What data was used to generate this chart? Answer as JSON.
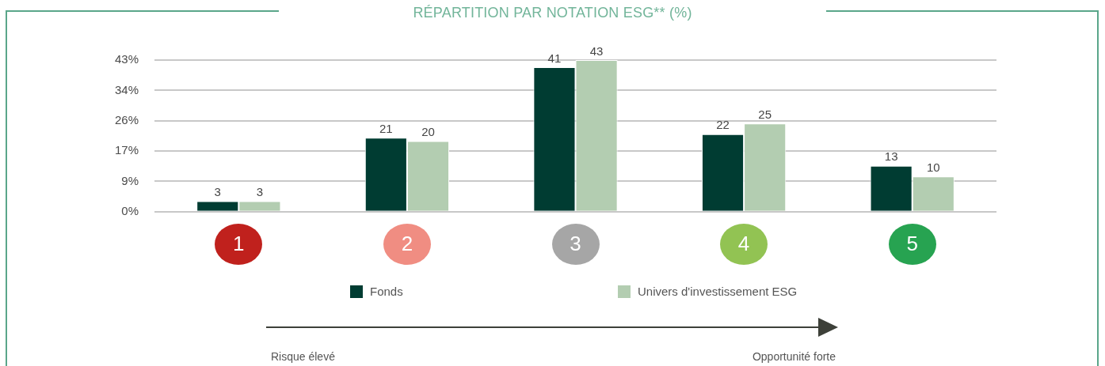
{
  "chart_data": {
    "type": "bar",
    "title": "RÉPARTITION PAR NOTATION ESG** (%)",
    "categories": [
      "1",
      "2",
      "3",
      "4",
      "5"
    ],
    "series": [
      {
        "name": "Fonds",
        "color": "#003c32",
        "values": [
          3,
          21,
          41,
          22,
          13
        ]
      },
      {
        "name": "Univers d'investissement ESG",
        "color": "#b3cdb1",
        "values": [
          3,
          20,
          43,
          25,
          10
        ]
      }
    ],
    "ylim": [
      0,
      43
    ],
    "yticks": [
      {
        "value": 0,
        "label": "0%"
      },
      {
        "value": 8.6,
        "label": "9%"
      },
      {
        "value": 17.2,
        "label": "17%"
      },
      {
        "value": 25.8,
        "label": "26%"
      },
      {
        "value": 34.4,
        "label": "34%"
      },
      {
        "value": 43,
        "label": "43%"
      }
    ],
    "grid": "y",
    "legend": "bottom",
    "data_labels": true,
    "annotations": [
      "Risque élevé",
      "Opportunité forte"
    ]
  }
}
